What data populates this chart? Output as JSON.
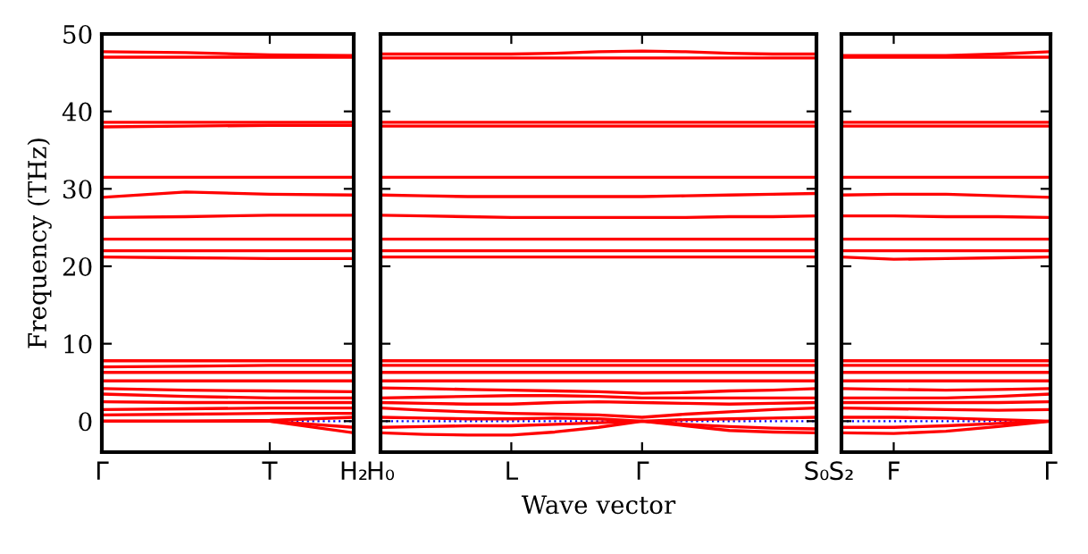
{
  "chart_data": [
    {
      "type": "line",
      "ylabel": "Frequency (THz)",
      "categories": [
        "Γ",
        null,
        "T",
        "H₂"
      ],
      "ylim": [
        -4,
        50
      ],
      "yticks": [
        0,
        10,
        20,
        30,
        40,
        50
      ],
      "grid": false,
      "line_style": "solid",
      "ref_lines": [
        {
          "axis": "y",
          "value": 0,
          "color": "#0000ff",
          "line_style": "dotted"
        }
      ],
      "series": [
        {
          "color": "#ff0000",
          "values": [
            47.7,
            47.6,
            47.3,
            47.2
          ]
        },
        {
          "color": "#ff0000",
          "values": [
            47.0,
            47.0,
            47.0,
            47.0
          ]
        },
        {
          "color": "#ff0000",
          "values": [
            38.6,
            38.6,
            38.6,
            38.6
          ]
        },
        {
          "color": "#ff0000",
          "values": [
            38.0,
            38.1,
            38.2,
            38.2
          ]
        },
        {
          "color": "#ff0000",
          "values": [
            31.5,
            31.5,
            31.5,
            31.5
          ]
        },
        {
          "color": "#ff0000",
          "values": [
            28.9,
            29.6,
            29.3,
            29.2
          ]
        },
        {
          "color": "#ff0000",
          "values": [
            26.3,
            26.4,
            26.6,
            26.6
          ]
        },
        {
          "color": "#ff0000",
          "values": [
            23.5,
            23.5,
            23.5,
            23.5
          ]
        },
        {
          "color": "#ff0000",
          "values": [
            22.0,
            22.0,
            22.0,
            22.0
          ]
        },
        {
          "color": "#ff0000",
          "values": [
            21.2,
            21.1,
            21.0,
            21.0
          ]
        },
        {
          "color": "#ff0000",
          "values": [
            7.8,
            7.8,
            7.8,
            7.8
          ]
        },
        {
          "color": "#ff0000",
          "values": [
            7.0,
            7.1,
            7.2,
            7.2
          ]
        },
        {
          "color": "#ff0000",
          "values": [
            6.3,
            6.3,
            6.3,
            6.3
          ]
        },
        {
          "color": "#ff0000",
          "values": [
            5.2,
            5.2,
            5.2,
            5.2
          ]
        },
        {
          "color": "#ff0000",
          "values": [
            4.2,
            4.0,
            3.9,
            3.8
          ]
        },
        {
          "color": "#ff0000",
          "values": [
            3.5,
            3.2,
            3.0,
            3.0
          ]
        },
        {
          "color": "#ff0000",
          "values": [
            2.5,
            2.4,
            2.4,
            2.4
          ]
        },
        {
          "color": "#ff0000",
          "values": [
            1.5,
            1.6,
            1.7,
            1.7
          ]
        },
        {
          "color": "#ff0000",
          "values": [
            0.8,
            0.9,
            1.0,
            1.0
          ]
        },
        {
          "color": "#ff0000",
          "values": [
            0,
            0,
            0,
            -1.5
          ]
        },
        {
          "color": "#ff0000",
          "values": [
            0,
            0,
            0,
            -0.8
          ]
        },
        {
          "color": "#ff0000",
          "values": [
            0,
            0,
            0.1,
            0.5
          ]
        }
      ]
    },
    {
      "type": "line",
      "xlabel": "Wave vector",
      "tick_labels": "x",
      "categories": [
        "H₀",
        null,
        null,
        "L",
        null,
        null,
        "Γ",
        null,
        null,
        null,
        "S₀"
      ],
      "ylim": [
        -4,
        50
      ],
      "yticks": [
        0,
        10,
        20,
        30,
        40,
        50
      ],
      "grid": false,
      "line_style": "solid",
      "ref_lines": [
        {
          "axis": "y",
          "value": 0,
          "color": "#0000ff",
          "line_style": "dotted"
        }
      ],
      "series": [
        {
          "color": "#ff0000",
          "values": [
            47.4,
            47.4,
            47.4,
            47.4,
            47.5,
            47.7,
            47.8,
            47.7,
            47.5,
            47.4,
            47.4
          ]
        },
        {
          "color": "#ff0000",
          "values": [
            46.9,
            46.9,
            46.9,
            46.9,
            46.9,
            46.9,
            46.9,
            46.9,
            46.9,
            46.9,
            46.9
          ]
        },
        {
          "color": "#ff0000",
          "values": [
            38.6,
            38.6,
            38.6,
            38.6,
            38.6,
            38.6,
            38.6,
            38.6,
            38.6,
            38.6,
            38.6
          ]
        },
        {
          "color": "#ff0000",
          "values": [
            38.1,
            38.1,
            38.1,
            38.1,
            38.1,
            38.1,
            38.1,
            38.1,
            38.1,
            38.1,
            38.1
          ]
        },
        {
          "color": "#ff0000",
          "values": [
            31.5,
            31.5,
            31.5,
            31.5,
            31.5,
            31.5,
            31.5,
            31.5,
            31.5,
            31.5,
            31.5
          ]
        },
        {
          "color": "#ff0000",
          "values": [
            29.2,
            29.1,
            29.0,
            29.0,
            29.0,
            29.0,
            29.0,
            29.1,
            29.2,
            29.3,
            29.4
          ]
        },
        {
          "color": "#ff0000",
          "values": [
            26.6,
            26.5,
            26.4,
            26.3,
            26.3,
            26.3,
            26.3,
            26.3,
            26.4,
            26.4,
            26.5
          ]
        },
        {
          "color": "#ff0000",
          "values": [
            23.5,
            23.5,
            23.5,
            23.5,
            23.5,
            23.5,
            23.5,
            23.5,
            23.5,
            23.5,
            23.5
          ]
        },
        {
          "color": "#ff0000",
          "values": [
            22.0,
            22.0,
            22.0,
            22.0,
            22.0,
            22.0,
            22.0,
            22.0,
            22.0,
            22.0,
            22.0
          ]
        },
        {
          "color": "#ff0000",
          "values": [
            21.2,
            21.2,
            21.2,
            21.2,
            21.2,
            21.2,
            21.2,
            21.2,
            21.2,
            21.2,
            21.2
          ]
        },
        {
          "color": "#ff0000",
          "values": [
            7.8,
            7.8,
            7.8,
            7.8,
            7.8,
            7.8,
            7.8,
            7.8,
            7.8,
            7.8,
            7.8
          ]
        },
        {
          "color": "#ff0000",
          "values": [
            7.2,
            7.2,
            7.2,
            7.2,
            7.2,
            7.2,
            7.2,
            7.2,
            7.2,
            7.2,
            7.2
          ]
        },
        {
          "color": "#ff0000",
          "values": [
            6.3,
            6.3,
            6.3,
            6.3,
            6.3,
            6.3,
            6.3,
            6.3,
            6.3,
            6.3,
            6.3
          ]
        },
        {
          "color": "#ff0000",
          "values": [
            5.2,
            5.2,
            5.2,
            5.2,
            5.2,
            5.2,
            5.2,
            5.2,
            5.2,
            5.2,
            5.2
          ]
        },
        {
          "color": "#ff0000",
          "values": [
            4.3,
            4.2,
            4.1,
            4.0,
            3.9,
            3.8,
            3.6,
            3.7,
            3.9,
            4.0,
            4.2
          ]
        },
        {
          "color": "#ff0000",
          "values": [
            3.0,
            3.1,
            3.2,
            3.3,
            3.3,
            3.2,
            3.0,
            3.0,
            3.0,
            3.0,
            3.0
          ]
        },
        {
          "color": "#ff0000",
          "values": [
            2.4,
            2.3,
            2.2,
            2.2,
            2.4,
            2.5,
            2.4,
            2.3,
            2.2,
            2.3,
            2.4
          ]
        },
        {
          "color": "#ff0000",
          "values": [
            1.7,
            1.4,
            1.2,
            1.0,
            0.9,
            0.8,
            0.5,
            0.9,
            1.2,
            1.5,
            1.7
          ]
        },
        {
          "color": "#ff0000",
          "values": [
            -1.5,
            -1.7,
            -1.8,
            -1.8,
            -1.4,
            -0.8,
            0,
            -0.6,
            -1.2,
            -1.4,
            -1.5
          ]
        },
        {
          "color": "#ff0000",
          "values": [
            -0.8,
            -0.7,
            -0.6,
            -0.6,
            -0.4,
            -0.2,
            0,
            -0.4,
            -0.7,
            -0.9,
            -1.0
          ]
        },
        {
          "color": "#ff0000",
          "values": [
            0.5,
            0.4,
            0.3,
            0.3,
            0.4,
            0.3,
            0,
            0.2,
            0.3,
            0.4,
            0.5
          ]
        }
      ]
    },
    {
      "type": "line",
      "tick_labels": "x",
      "categories": [
        "S₂",
        "F",
        null,
        null,
        "Γ"
      ],
      "ylim": [
        -4,
        50
      ],
      "yticks": [
        0,
        10,
        20,
        30,
        40,
        50
      ],
      "grid": false,
      "line_style": "solid",
      "ref_lines": [
        {
          "axis": "y",
          "value": 0,
          "color": "#0000ff",
          "line_style": "dotted"
        }
      ],
      "series": [
        {
          "color": "#ff0000",
          "values": [
            47.2,
            47.2,
            47.2,
            47.4,
            47.7
          ]
        },
        {
          "color": "#ff0000",
          "values": [
            47.0,
            47.0,
            47.0,
            47.0,
            47.0
          ]
        },
        {
          "color": "#ff0000",
          "values": [
            38.6,
            38.6,
            38.6,
            38.6,
            38.6
          ]
        },
        {
          "color": "#ff0000",
          "values": [
            38.1,
            38.1,
            38.1,
            38.1,
            38.1
          ]
        },
        {
          "color": "#ff0000",
          "values": [
            31.5,
            31.5,
            31.5,
            31.5,
            31.5
          ]
        },
        {
          "color": "#ff0000",
          "values": [
            29.2,
            29.3,
            29.3,
            29.1,
            28.9
          ]
        },
        {
          "color": "#ff0000",
          "values": [
            26.5,
            26.5,
            26.4,
            26.4,
            26.3
          ]
        },
        {
          "color": "#ff0000",
          "values": [
            23.5,
            23.5,
            23.5,
            23.5,
            23.5
          ]
        },
        {
          "color": "#ff0000",
          "values": [
            22.0,
            22.0,
            22.0,
            22.0,
            22.0
          ]
        },
        {
          "color": "#ff0000",
          "values": [
            21.2,
            20.9,
            21.0,
            21.1,
            21.2
          ]
        },
        {
          "color": "#ff0000",
          "values": [
            7.8,
            7.8,
            7.8,
            7.8,
            7.8
          ]
        },
        {
          "color": "#ff0000",
          "values": [
            7.2,
            7.2,
            7.2,
            7.2,
            7.2
          ]
        },
        {
          "color": "#ff0000",
          "values": [
            6.3,
            6.3,
            6.3,
            6.3,
            6.3
          ]
        },
        {
          "color": "#ff0000",
          "values": [
            5.2,
            5.2,
            5.2,
            5.2,
            5.2
          ]
        },
        {
          "color": "#ff0000",
          "values": [
            4.2,
            4.1,
            4.0,
            4.1,
            4.2
          ]
        },
        {
          "color": "#ff0000",
          "values": [
            3.0,
            3.0,
            3.0,
            3.2,
            3.5
          ]
        },
        {
          "color": "#ff0000",
          "values": [
            2.4,
            2.4,
            2.4,
            2.4,
            2.5
          ]
        },
        {
          "color": "#ff0000",
          "values": [
            1.7,
            1.6,
            1.5,
            1.4,
            1.5
          ]
        },
        {
          "color": "#ff0000",
          "values": [
            -1.5,
            -1.6,
            -1.3,
            -0.7,
            0
          ]
        },
        {
          "color": "#ff0000",
          "values": [
            -0.8,
            -0.8,
            -0.6,
            -0.3,
            0
          ]
        },
        {
          "color": "#ff0000",
          "values": [
            0.5,
            0.5,
            0.4,
            0.2,
            0
          ]
        }
      ]
    }
  ]
}
